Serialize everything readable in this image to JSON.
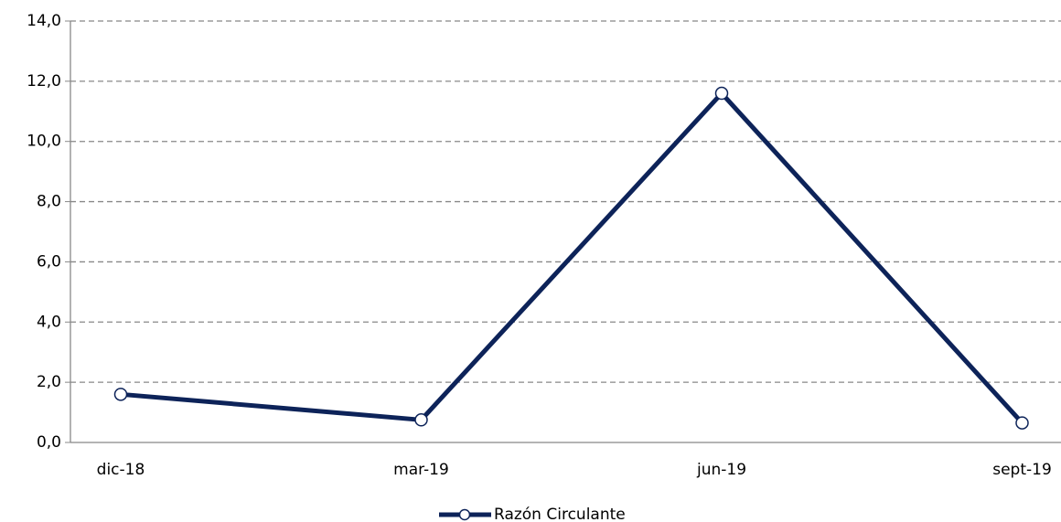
{
  "chart_data": {
    "type": "line",
    "categories": [
      "dic-18",
      "mar-19",
      "jun-19",
      "sept-19"
    ],
    "series": [
      {
        "name": "Razón Circulante",
        "color": "#0d2359",
        "values": [
          1.6,
          0.75,
          11.6,
          0.65
        ]
      }
    ],
    "ylim": [
      0,
      14
    ],
    "yticks": [
      {
        "value": 0,
        "label": "0,0"
      },
      {
        "value": 2,
        "label": "2,0"
      },
      {
        "value": 4,
        "label": "4,0"
      },
      {
        "value": 6,
        "label": "6,0"
      },
      {
        "value": 8,
        "label": "8,0"
      },
      {
        "value": 10,
        "label": "10,0"
      },
      {
        "value": 12,
        "label": "12,0"
      },
      {
        "value": 14,
        "label": "14,0"
      }
    ],
    "grid": true,
    "legend": "bottom"
  }
}
